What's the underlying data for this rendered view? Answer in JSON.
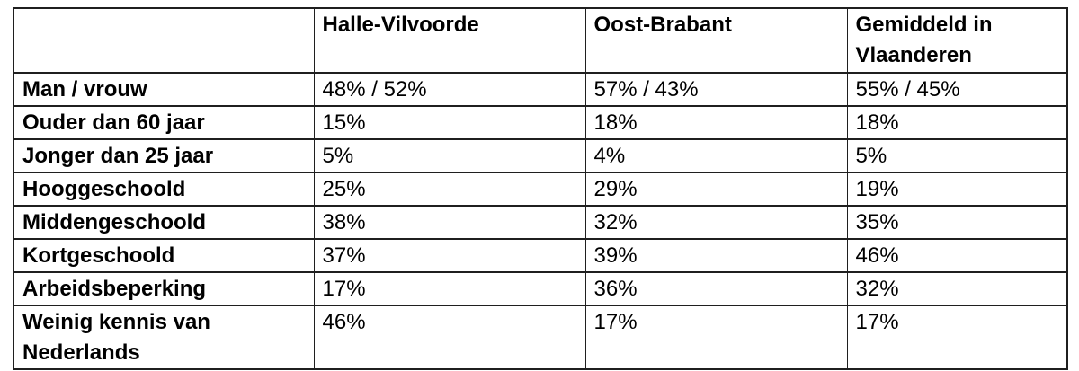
{
  "table": {
    "columns": [
      "",
      "Halle-Vilvoorde",
      "Oost-Brabant",
      "Gemiddeld in Vlaanderen"
    ],
    "rows": [
      {
        "label": "Man / vrouw",
        "values": [
          "48% / 52%",
          "57% / 43%",
          "55% / 45%"
        ]
      },
      {
        "label": "Ouder dan 60 jaar",
        "values": [
          "15%",
          "18%",
          "18%"
        ]
      },
      {
        "label": "Jonger dan 25 jaar",
        "values": [
          "5%",
          "4%",
          "5%"
        ]
      },
      {
        "label": "Hooggeschoold",
        "values": [
          "25%",
          "29%",
          "19%"
        ]
      },
      {
        "label": "Middengeschoold",
        "values": [
          "38%",
          "32%",
          "35%"
        ]
      },
      {
        "label": "Kortgeschoold",
        "values": [
          "37%",
          "39%",
          "46%"
        ]
      },
      {
        "label": "Arbeidsbeperking",
        "values": [
          "17%",
          "36%",
          "32%"
        ]
      },
      {
        "label": "Weinig kennis van Nederlands",
        "values": [
          "46%",
          "17%",
          "17%"
        ]
      }
    ]
  },
  "chart_data": {
    "type": "table",
    "columns": [
      "",
      "Halle-Vilvoorde",
      "Oost-Brabant",
      "Gemiddeld in Vlaanderen"
    ],
    "rows": [
      [
        "Man / vrouw",
        "48% / 52%",
        "57% / 43%",
        "55% / 45%"
      ],
      [
        "Ouder dan 60 jaar",
        "15%",
        "18%",
        "18%"
      ],
      [
        "Jonger dan 25 jaar",
        "5%",
        "4%",
        "5%"
      ],
      [
        "Hooggeschoold",
        "25%",
        "29%",
        "19%"
      ],
      [
        "Middengeschoold",
        "38%",
        "32%",
        "35%"
      ],
      [
        "Kortgeschoold",
        "37%",
        "39%",
        "46%"
      ],
      [
        "Arbeidsbeperking",
        "17%",
        "36%",
        "32%"
      ],
      [
        "Weinig kennis van Nederlands",
        "46%",
        "17%",
        "17%"
      ]
    ]
  },
  "colors": {
    "border": "#1f1f1f",
    "text": "#000000",
    "background": "#ffffff"
  }
}
